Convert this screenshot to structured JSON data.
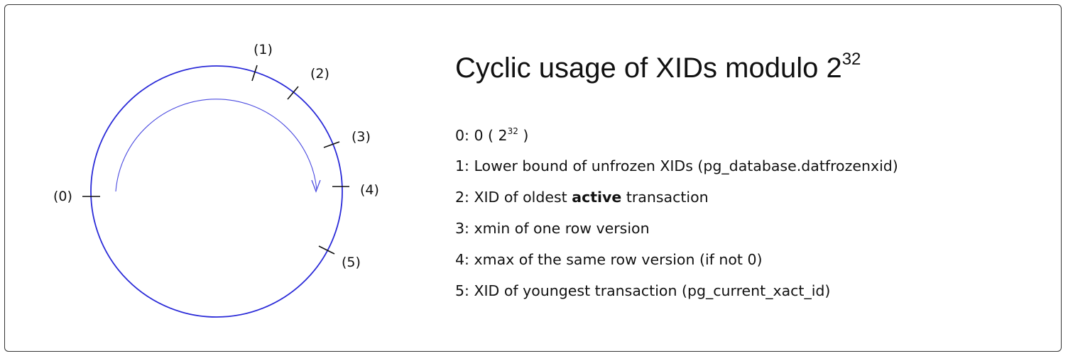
{
  "diagram": {
    "colors": {
      "circle": "#2a2ad8",
      "arrow": "#4b4be0",
      "ticks": "#111111"
    },
    "markers": [
      "(0)",
      "(1)",
      "(2)",
      "(3)",
      "(4)",
      "(5)"
    ],
    "title": {
      "text": "Cyclic usage of XIDs modulo 2",
      "exponent": "32"
    },
    "legend": {
      "item0": {
        "prefix": "0: 0 ( 2",
        "exponent": "32",
        "suffix": " )"
      },
      "item1": "1: Lower bound of unfrozen XIDs (pg_database.datfrozenxid)",
      "item2": {
        "prefix": "2: XID of oldest ",
        "bold": "active",
        "suffix": " transaction"
      },
      "item3": "3: xmin of one row version",
      "item4": "4: xmax of the same row version (if not 0)",
      "item5": "5: XID of youngest transaction (pg_current_xact_id)"
    }
  }
}
